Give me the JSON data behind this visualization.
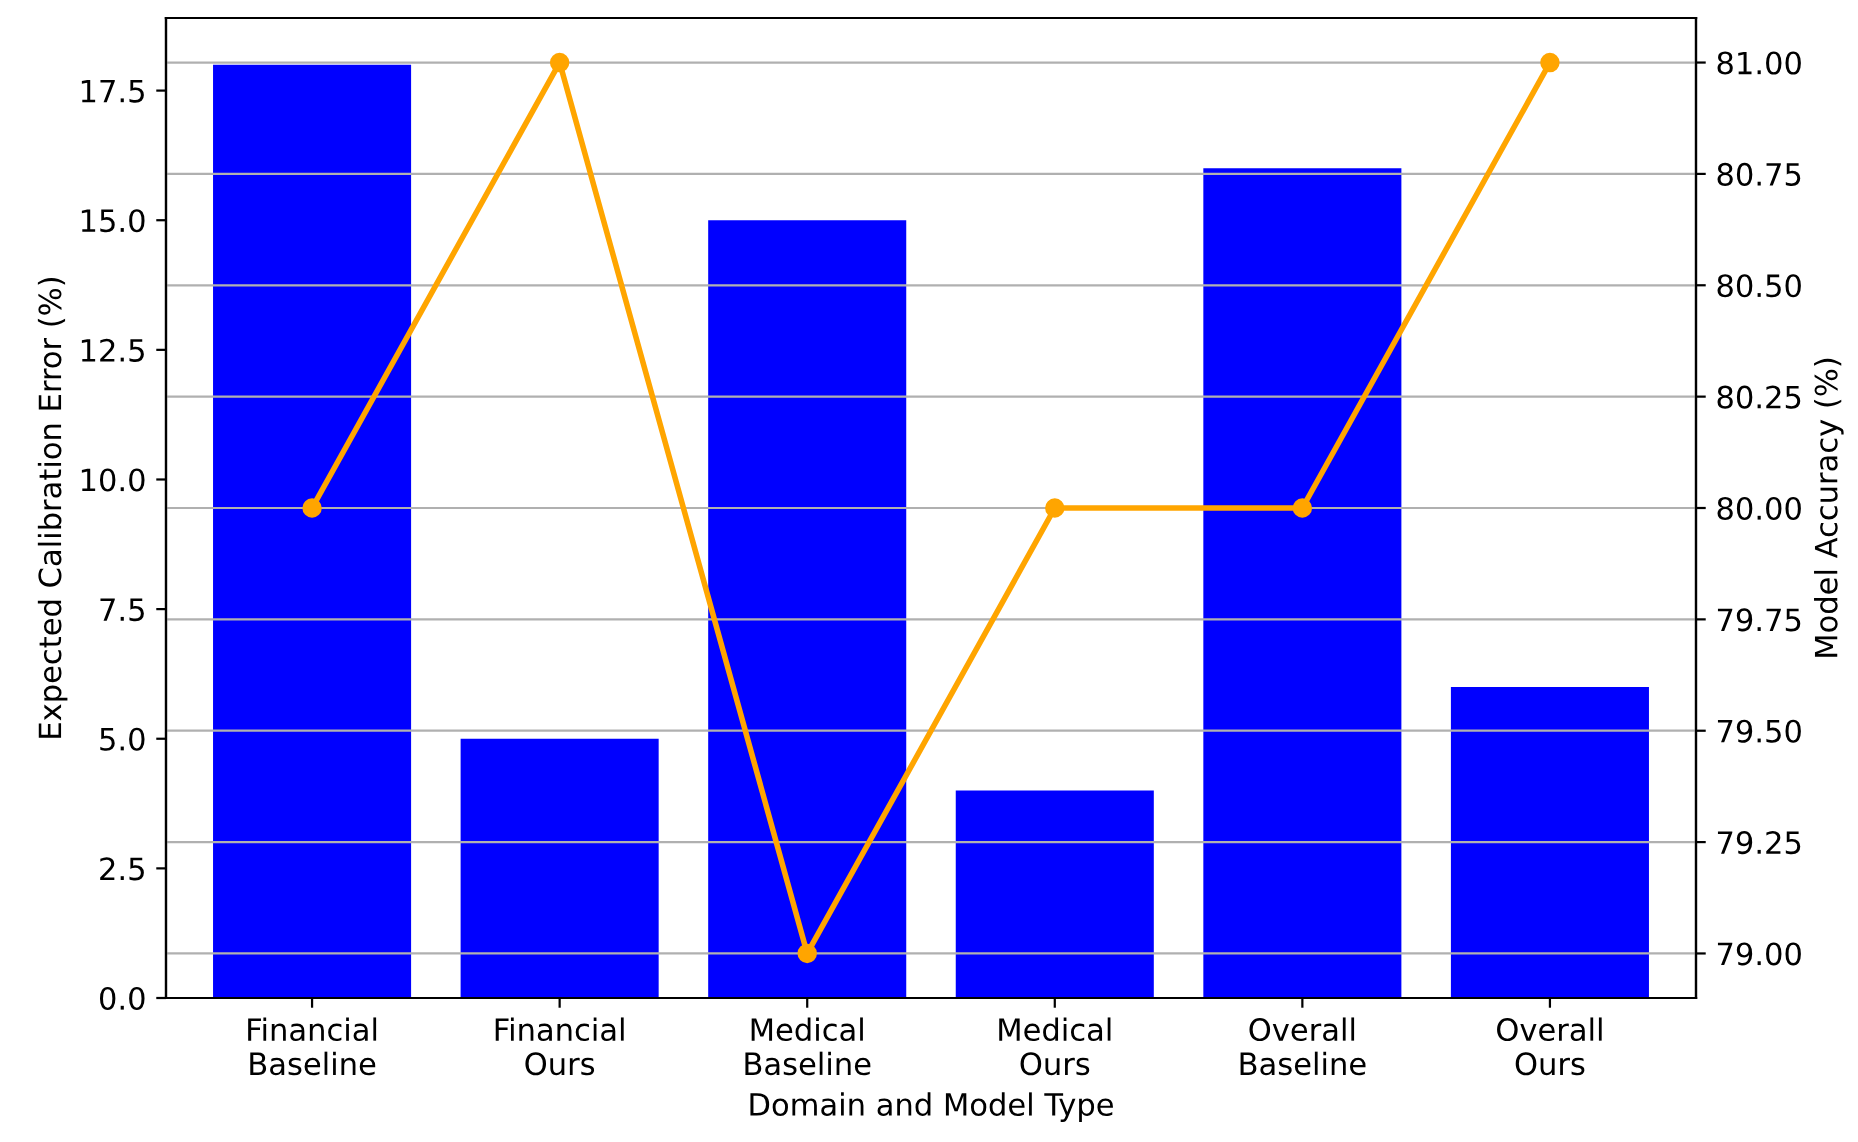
{
  "chart_data": {
    "type": "bar",
    "xlabel": "Domain and Model Type",
    "ylabel": "Expected Calibration Error (%)",
    "y2label": "Model Accuracy (%)",
    "categories": [
      "Financial\nBaseline",
      "Financial\nOurs",
      "Medical\nBaseline",
      "Medical\nOurs",
      "Overall\nBaseline",
      "Overall\nOurs"
    ],
    "series": [
      {
        "color": "#0000ff",
        "values": [
          18,
          5,
          15,
          4,
          16,
          6
        ]
      },
      {
        "type": "line",
        "axis": "y2",
        "color": "#ffa500",
        "values": [
          80,
          81,
          79,
          80,
          80,
          81
        ]
      }
    ],
    "marker": "circle",
    "line_style": "solid",
    "grid": "y2",
    "ylim": [
      0,
      18.9
    ],
    "yticks": [
      {
        "value": 0,
        "label": "0.0"
      },
      2.5,
      {
        "value": 5,
        "label": "5.0"
      },
      7.5,
      {
        "value": 10,
        "label": "10.0"
      },
      12.5,
      {
        "value": 15,
        "label": "15.0"
      },
      17.5
    ],
    "y2lim": [
      78.9,
      81.1
    ],
    "y2ticks": [
      {
        "value": 79,
        "label": "79.00"
      },
      79.25,
      {
        "value": 79.5,
        "label": "79.50"
      },
      79.75,
      {
        "value": 80,
        "label": "80.00"
      },
      80.25,
      {
        "value": 80.5,
        "label": "80.50"
      },
      80.75,
      {
        "value": 81,
        "label": "81.00"
      }
    ]
  }
}
